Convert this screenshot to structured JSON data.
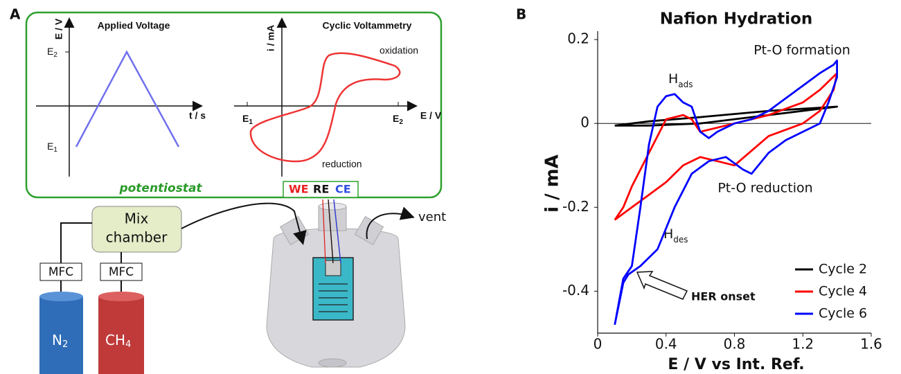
{
  "panel_labels": [
    "A",
    "B"
  ],
  "diagram": {
    "voltage_title": "Applied Voltage",
    "voltage_ylabel": "E / V",
    "voltage_xlabel": "t / s",
    "voltage_e2": {
      "text": "E",
      "sub": "2"
    },
    "voltage_e1": {
      "text": "E",
      "sub": "1"
    },
    "cv_title": "Cyclic Voltammetry",
    "cv_ylabel": "i / mA",
    "cv_xlabel": "E / V",
    "cv_e1": {
      "text": "E",
      "sub": "1"
    },
    "cv_e2": {
      "text": "E",
      "sub": "2"
    },
    "oxidation": "oxidation",
    "reduction": "reduction",
    "potentiostat": "potentiostat",
    "electrodes": [
      "WE",
      "RE",
      "CE"
    ],
    "mix_chamber": [
      "Mix",
      "chamber"
    ],
    "mfc": [
      "MFC",
      "MFC"
    ],
    "gas_n2": {
      "text": "N",
      "sub": "2"
    },
    "gas_ch4": {
      "text": "CH",
      "sub": "4"
    },
    "vent": "vent"
  },
  "chart_data": {
    "type": "line",
    "title": "Nafion Hydration",
    "x_label": "E / V vs Int. Ref.",
    "y_label": "i / mA",
    "xlim": [
      0,
      1.6
    ],
    "ylim": [
      -0.5,
      0.22
    ],
    "xticks": [
      0,
      0.4,
      0.8,
      1.2,
      1.6
    ],
    "yticks": [
      0.2,
      0,
      -0.2,
      -0.4
    ],
    "zero_line": true,
    "legend": "lower right",
    "annotations": {
      "pto_formation": "Pt-O formation",
      "pto_reduction": "Pt-O reduction",
      "h_ads": {
        "text": "H",
        "sub": "ads"
      },
      "h_des": {
        "text": "H",
        "sub": "des"
      },
      "her_onset": "HER onset"
    },
    "series": [
      {
        "name": "Cycle 2",
        "color": "#000000",
        "x": [
          0.1,
          0.3,
          0.6,
          1.0,
          1.4,
          1.0,
          0.6,
          0.3,
          0.1
        ],
        "values": [
          -0.005,
          0.005,
          0.015,
          0.03,
          0.04,
          0.02,
          0.0,
          -0.005,
          -0.005
        ]
      },
      {
        "name": "Cycle 4",
        "color": "#ff0000",
        "x": [
          0.1,
          0.15,
          0.2,
          0.3,
          0.4,
          0.5,
          0.55,
          0.6,
          0.7,
          0.8,
          1.0,
          1.2,
          1.3,
          1.4,
          1.38,
          1.3,
          1.2,
          1.0,
          0.8,
          0.7,
          0.6,
          0.5,
          0.4,
          0.3,
          0.2,
          0.1
        ],
        "values": [
          -0.23,
          -0.2,
          -0.15,
          -0.07,
          0.01,
          0.02,
          0.01,
          -0.02,
          -0.01,
          0.0,
          0.02,
          0.05,
          0.08,
          0.12,
          0.08,
          0.03,
          0.0,
          -0.03,
          -0.1,
          -0.09,
          -0.08,
          -0.1,
          -0.14,
          -0.17,
          -0.2,
          -0.23
        ]
      },
      {
        "name": "Cycle 6",
        "color": "#0000ff",
        "x": [
          0.1,
          0.15,
          0.2,
          0.25,
          0.3,
          0.35,
          0.4,
          0.45,
          0.5,
          0.55,
          0.6,
          0.65,
          0.7,
          0.8,
          0.9,
          1.0,
          1.1,
          1.2,
          1.3,
          1.38,
          1.4,
          1.4,
          1.35,
          1.3,
          1.2,
          1.1,
          1.0,
          0.9,
          0.85,
          0.75,
          0.65,
          0.55,
          0.45,
          0.4,
          0.35,
          0.25,
          0.18,
          0.15,
          0.1
        ],
        "values": [
          -0.48,
          -0.37,
          -0.34,
          -0.2,
          -0.05,
          0.04,
          0.065,
          0.07,
          0.05,
          0.04,
          -0.02,
          -0.035,
          -0.02,
          0.0,
          0.01,
          0.03,
          0.06,
          0.09,
          0.12,
          0.14,
          0.15,
          0.11,
          0.05,
          0.0,
          -0.02,
          -0.04,
          -0.07,
          -0.12,
          -0.11,
          -0.08,
          -0.09,
          -0.12,
          -0.2,
          -0.25,
          -0.3,
          -0.34,
          -0.36,
          -0.38,
          -0.48
        ]
      }
    ]
  }
}
